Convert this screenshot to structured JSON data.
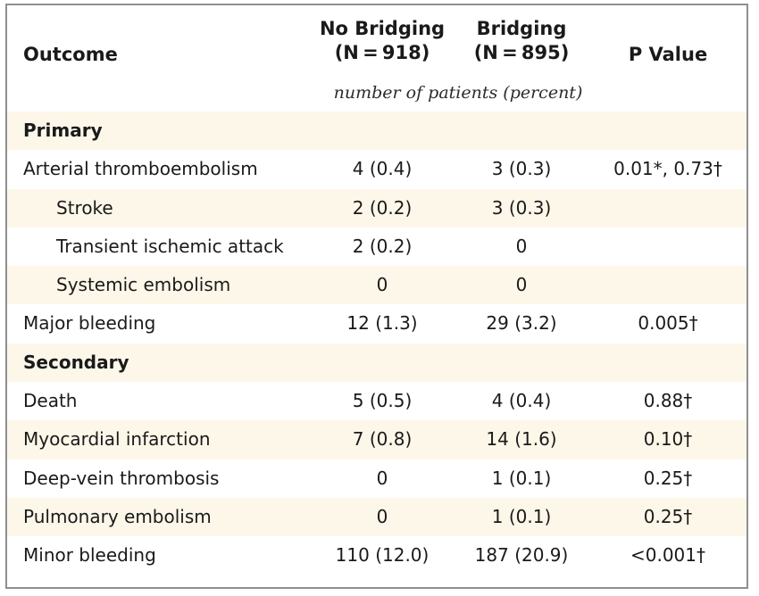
{
  "header": {
    "outcome": "Outcome",
    "no_bridging_line1": "No Bridging",
    "no_bridging_line2": "(N = 918)",
    "bridging_line1": "Bridging",
    "bridging_line2": "(N = 895)",
    "p_value": "P Value",
    "subheader": "number of patients (percent)"
  },
  "rows": [
    {
      "label": "Primary",
      "type": "section",
      "no_bridging": "",
      "bridging": "",
      "p": ""
    },
    {
      "label": "Arterial thromboembolism",
      "type": "item",
      "no_bridging": "4 (0.4)",
      "bridging": "3 (0.3)",
      "p": "0.01*, 0.73†"
    },
    {
      "label": "Stroke",
      "type": "sub",
      "no_bridging": "2 (0.2)",
      "bridging": "3 (0.3)",
      "p": ""
    },
    {
      "label": "Transient ischemic attack",
      "type": "sub",
      "no_bridging": "2 (0.2)",
      "bridging": "0",
      "p": ""
    },
    {
      "label": "Systemic embolism",
      "type": "sub",
      "no_bridging": "0",
      "bridging": "0",
      "p": ""
    },
    {
      "label": "Major bleeding",
      "type": "item",
      "no_bridging": "12 (1.3)",
      "bridging": "29 (3.2)",
      "p": "0.005†"
    },
    {
      "label": "Secondary",
      "type": "section",
      "no_bridging": "",
      "bridging": "",
      "p": ""
    },
    {
      "label": "Death",
      "type": "item",
      "no_bridging": "5 (0.5)",
      "bridging": "4 (0.4)",
      "p": "0.88†"
    },
    {
      "label": "Myocardial infarction",
      "type": "item",
      "no_bridging": "7 (0.8)",
      "bridging": "14 (1.6)",
      "p": "0.10†"
    },
    {
      "label": "Deep-vein thrombosis",
      "type": "item",
      "no_bridging": "0",
      "bridging": "1 (0.1)",
      "p": "0.25†"
    },
    {
      "label": "Pulmonary embolism",
      "type": "item",
      "no_bridging": "0",
      "bridging": "1 (0.1)",
      "p": "0.25†"
    },
    {
      "label": "Minor bleeding",
      "type": "item",
      "no_bridging": "110 (12.0)",
      "bridging": "187 (20.9)",
      "p": "<0.001†"
    }
  ],
  "colors": {
    "shade": "#fdf7e9",
    "border": "#8f8f8f",
    "text": "#1a1a1a"
  }
}
